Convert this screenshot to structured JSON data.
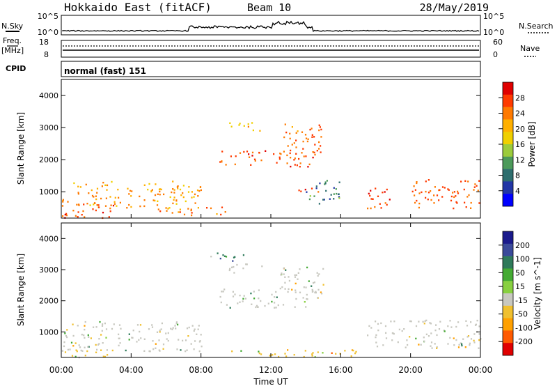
{
  "header": {
    "station": "Hokkaido East (fitACF)",
    "beam": "Beam 10",
    "date": "28/May/2019"
  },
  "strip_labels": {
    "nsky": "N.Sky",
    "nsearch": "N.Search",
    "freq": "Freq.",
    "freq_unit": "[MHz]",
    "nave": "Nave",
    "cpid": "CPID",
    "cpid_value": "normal (fast) 151"
  },
  "strip_ticks": {
    "nsky_left": [
      "10^5",
      "10^0"
    ],
    "nsky_right": [
      "10^5",
      "10^0"
    ],
    "freq_left": [
      "18",
      "8"
    ],
    "nave_right": [
      "60",
      "0"
    ]
  },
  "panels": {
    "power": {
      "ylabel": "Slant Range [km]",
      "cbar_label": "Power [dB]",
      "cbar_ticks": [
        "28",
        "24",
        "20",
        "16",
        "12",
        "8",
        "4"
      ],
      "cbar_colors": [
        "#e00000",
        "#ff3a00",
        "#ff7a00",
        "#ffb000",
        "#f0d000",
        "#9ccc3c",
        "#4c9a5a",
        "#2e6e6e",
        "#2236a6",
        "#0000ff"
      ]
    },
    "velocity": {
      "ylabel": "Slant Range [km]",
      "cbar_label": "Velocity [m s^-1]",
      "cbar_ticks": [
        "200",
        "100",
        "50",
        "15",
        "-15",
        "-50",
        "-100",
        "-200"
      ],
      "cbar_colors": [
        "#1a1a8c",
        "#3a4a9a",
        "#2e7a5a",
        "#44aa33",
        "#88d040",
        "#c8c8c0",
        "#f0c030",
        "#ffa000",
        "#ff5a00",
        "#e00000"
      ]
    }
  },
  "xaxis": {
    "label": "Time UT",
    "ticks": [
      "00:00",
      "04:00",
      "08:00",
      "12:00",
      "16:00",
      "20:00",
      "00:00"
    ]
  },
  "chart_data": [
    {
      "type": "heatmap",
      "title": "Power",
      "ylabel": "Slant Range [km]",
      "xlabel": "Time UT",
      "x_range_hours": [
        0,
        24
      ],
      "y_range_km": [
        180,
        4500
      ],
      "yticks": [
        1000,
        2000,
        3000,
        4000
      ],
      "colorbar": {
        "label": "Power [dB]",
        "ticks": [
          28,
          24,
          20,
          16,
          12,
          8,
          4
        ]
      },
      "regions": [
        {
          "t_start": 0.0,
          "t_end": 8.0,
          "r_low": 500,
          "r_high": 1350,
          "dB": 22
        },
        {
          "t_start": 0.0,
          "t_end": 3.0,
          "r_low": 200,
          "r_high": 700,
          "dB": 28
        },
        {
          "t_start": 5.5,
          "t_end": 9.5,
          "r_low": 250,
          "r_high": 550,
          "dB": 24
        },
        {
          "t_start": 9.0,
          "t_end": 14.5,
          "r_low": 1800,
          "r_high": 2300,
          "dB": 27
        },
        {
          "t_start": 12.5,
          "t_end": 15.0,
          "r_low": 2200,
          "r_high": 3200,
          "dB": 25
        },
        {
          "t_start": 9.5,
          "t_end": 11.5,
          "r_low": 2900,
          "r_high": 3200,
          "dB": 22
        },
        {
          "t_start": 17.5,
          "t_end": 19.0,
          "r_low": 500,
          "r_high": 1200,
          "dB": 28
        },
        {
          "t_start": 20.0,
          "t_end": 24.0,
          "r_low": 500,
          "r_high": 1400,
          "dB": 26
        },
        {
          "t_start": 14.0,
          "t_end": 16.0,
          "r_low": 600,
          "r_high": 1400,
          "dB": 12
        },
        {
          "t_start": 13.5,
          "t_end": 15.0,
          "r_low": 950,
          "r_high": 1150,
          "dB": 27
        }
      ]
    },
    {
      "type": "heatmap",
      "title": "Velocity",
      "ylabel": "Slant Range [km]",
      "xlabel": "Time UT",
      "x_range_hours": [
        0,
        24
      ],
      "y_range_km": [
        180,
        4500
      ],
      "yticks": [
        1000,
        2000,
        3000,
        4000
      ],
      "colorbar": {
        "label": "Velocity [m s^-1]",
        "ticks": [
          200,
          100,
          50,
          15,
          -15,
          -50,
          -100,
          -200
        ]
      },
      "regions": [
        {
          "t_start": 0.0,
          "t_end": 8.0,
          "r_low": 400,
          "r_high": 1350,
          "ms": 0
        },
        {
          "t_start": 0.0,
          "t_end": 3.0,
          "r_low": 200,
          "r_high": 450,
          "ms": -40
        },
        {
          "t_start": 9.0,
          "t_end": 15.0,
          "r_low": 1800,
          "r_high": 2400,
          "ms": 0
        },
        {
          "t_start": 12.5,
          "t_end": 15.0,
          "r_low": 2300,
          "r_high": 3200,
          "ms": 0
        },
        {
          "t_start": 9.5,
          "t_end": 11.5,
          "r_low": 2900,
          "r_high": 3200,
          "ms": 0
        },
        {
          "t_start": 17.5,
          "t_end": 24.0,
          "r_low": 500,
          "r_high": 1400,
          "ms": 0
        },
        {
          "t_start": 9.5,
          "t_end": 17.0,
          "r_low": 200,
          "r_high": 450,
          "ms": -40
        },
        {
          "t_start": 8.5,
          "t_end": 10.5,
          "r_low": 3300,
          "r_high": 3600,
          "ms": 60
        }
      ]
    }
  ]
}
